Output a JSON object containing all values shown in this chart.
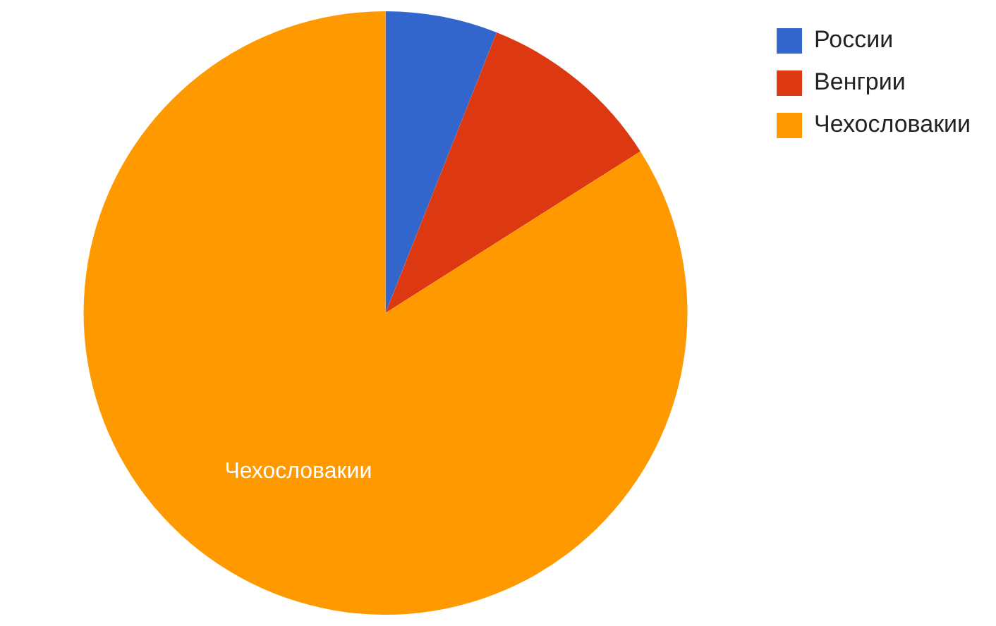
{
  "chart_data": {
    "type": "pie",
    "categories": [
      "России",
      "Венгрии",
      "Чехословакии"
    ],
    "values": [
      6,
      10,
      84
    ],
    "colors": [
      "#3366cc",
      "#dc3912",
      "#ff9900"
    ],
    "legend": "top right",
    "annotations": [
      {
        "text": "Чехословакии",
        "x": "Чехословакии"
      }
    ]
  }
}
